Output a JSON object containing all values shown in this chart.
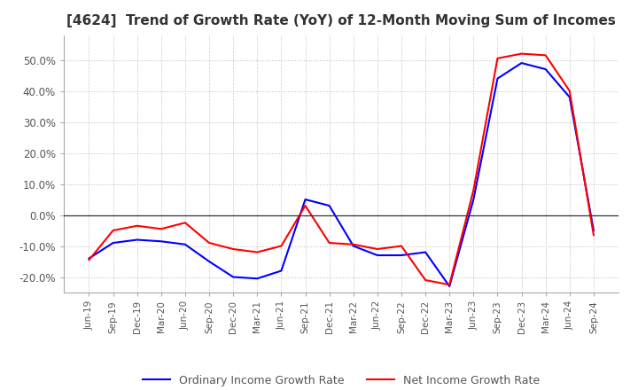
{
  "title": "[4624]  Trend of Growth Rate (YoY) of 12-Month Moving Sum of Incomes",
  "title_fontsize": 11,
  "ylim": [
    -25,
    58
  ],
  "yticks": [
    -20.0,
    -10.0,
    0.0,
    10.0,
    20.0,
    30.0,
    40.0,
    50.0
  ],
  "background_color": "#ffffff",
  "plot_bg_color": "#ffffff",
  "grid_color": "#bbbbbb",
  "legend_labels": [
    "Ordinary Income Growth Rate",
    "Net Income Growth Rate"
  ],
  "legend_colors": [
    "#0000ff",
    "#ff0000"
  ],
  "x_labels": [
    "Jun-19",
    "Sep-19",
    "Dec-19",
    "Mar-20",
    "Jun-20",
    "Sep-20",
    "Dec-20",
    "Mar-21",
    "Jun-21",
    "Sep-21",
    "Dec-21",
    "Mar-22",
    "Jun-22",
    "Sep-22",
    "Dec-22",
    "Mar-23",
    "Jun-23",
    "Sep-23",
    "Dec-23",
    "Mar-24",
    "Jun-24",
    "Sep-24"
  ],
  "ordinary_income_growth": [
    -14.0,
    -9.0,
    -8.0,
    -8.5,
    -9.5,
    -15.0,
    -20.0,
    -20.5,
    -18.0,
    5.0,
    3.0,
    -10.0,
    -13.0,
    -13.0,
    -12.0,
    -23.0,
    5.0,
    44.0,
    49.0,
    47.0,
    38.0,
    -5.0
  ],
  "net_income_growth": [
    -14.5,
    -5.0,
    -3.5,
    -4.5,
    -2.5,
    -9.0,
    -11.0,
    -12.0,
    -10.0,
    3.0,
    -9.0,
    -9.5,
    -11.0,
    -10.0,
    -21.0,
    -22.5,
    8.0,
    50.5,
    52.0,
    51.5,
    40.0,
    -6.5
  ]
}
